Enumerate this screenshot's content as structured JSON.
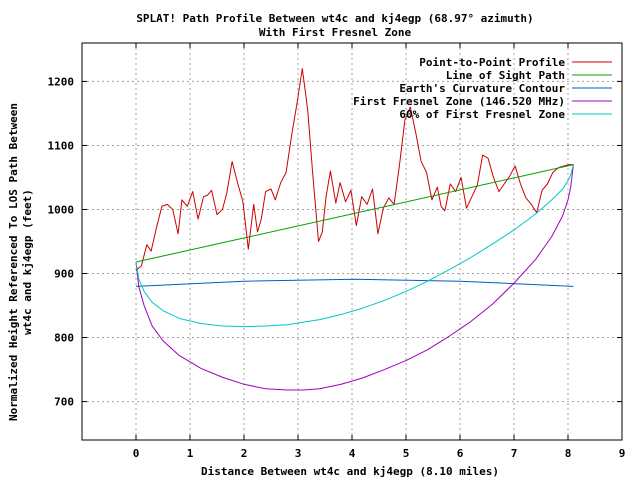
{
  "chart_data": {
    "type": "line",
    "title": "SPLAT! Path Profile Between wt4c and kj4egp (68.97° azimuth)",
    "subtitle": "With First Fresnel Zone",
    "xlabel": "Distance Between wt4c and kj4egp (8.10 miles)",
    "ylabel_line1": "Normalized Height Referenced To LOS Path Between",
    "ylabel_line2": "wt4c and kj4egp (feet)",
    "xlim": [
      -1,
      9
    ],
    "ylim": [
      640,
      1260
    ],
    "xticks": [
      "0",
      "1",
      "2",
      "3",
      "4",
      "5",
      "6",
      "7",
      "8",
      "9"
    ],
    "yticks": [
      "700",
      "800",
      "900",
      "1000",
      "1100",
      "1200"
    ],
    "grid": true,
    "legend_position": "top-right",
    "series": [
      {
        "name": "Point-to-Point Profile",
        "color": "#cc0000",
        "x": [
          0.0,
          0.1,
          0.2,
          0.28,
          0.38,
          0.48,
          0.58,
          0.68,
          0.78,
          0.85,
          0.95,
          1.05,
          1.15,
          1.25,
          1.32,
          1.4,
          1.5,
          1.6,
          1.68,
          1.78,
          1.88,
          1.98,
          2.08,
          2.18,
          2.25,
          2.32,
          2.4,
          2.5,
          2.58,
          2.68,
          2.78,
          2.88,
          2.98,
          3.08,
          3.18,
          3.28,
          3.38,
          3.45,
          3.52,
          3.6,
          3.7,
          3.78,
          3.88,
          3.98,
          4.08,
          4.18,
          4.28,
          4.38,
          4.48,
          4.58,
          4.68,
          4.78,
          4.88,
          4.98,
          5.08,
          5.18,
          5.28,
          5.38,
          5.48,
          5.58,
          5.65,
          5.72,
          5.82,
          5.92,
          6.02,
          6.12,
          6.22,
          6.32,
          6.42,
          6.52,
          6.62,
          6.72,
          6.82,
          6.92,
          7.02,
          7.12,
          7.22,
          7.32,
          7.42,
          7.52,
          7.62,
          7.72,
          7.82,
          7.92,
          8.02,
          8.1
        ],
        "y": [
          905,
          912,
          945,
          935,
          972,
          1005,
          1008,
          1000,
          962,
          1015,
          1005,
          1028,
          985,
          1020,
          1022,
          1030,
          992,
          1000,
          1025,
          1075,
          1042,
          1012,
          938,
          1008,
          965,
          985,
          1028,
          1032,
          1015,
          1042,
          1058,
          1115,
          1165,
          1220,
          1155,
          1048,
          950,
          965,
          1020,
          1060,
          1010,
          1042,
          1012,
          1030,
          975,
          1020,
          1008,
          1032,
          962,
          1002,
          1018,
          1008,
          1070,
          1140,
          1160,
          1120,
          1075,
          1058,
          1015,
          1035,
          1005,
          998,
          1040,
          1028,
          1050,
          1002,
          1020,
          1038,
          1085,
          1080,
          1050,
          1028,
          1040,
          1052,
          1068,
          1040,
          1018,
          1008,
          995,
          1030,
          1040,
          1058,
          1065,
          1068,
          1070,
          1070
        ]
      },
      {
        "name": "Line of Sight Path",
        "color": "#00a000",
        "x": [
          0.0,
          8.1
        ],
        "y": [
          918,
          1070
        ]
      },
      {
        "name": "Earth's Curvature Contour",
        "color": "#0060c0",
        "x": [
          0.0,
          2.0,
          4.05,
          6.0,
          8.1
        ],
        "y": [
          880,
          888,
          891,
          888,
          880
        ]
      },
      {
        "name": "First Fresnel Zone (146.520 MHz)",
        "color": "#a000c0",
        "x": [
          0.0,
          0.05,
          0.15,
          0.3,
          0.5,
          0.8,
          1.2,
          1.6,
          2.0,
          2.4,
          2.8,
          3.1,
          3.4,
          3.8,
          4.2,
          4.6,
          5.0,
          5.4,
          5.8,
          6.2,
          6.6,
          7.0,
          7.4,
          7.7,
          7.9,
          8.0,
          8.05,
          8.1
        ],
        "y": [
          918,
          880,
          850,
          818,
          795,
          772,
          752,
          738,
          727,
          720,
          718,
          718,
          720,
          727,
          737,
          750,
          764,
          781,
          802,
          825,
          852,
          885,
          922,
          958,
          990,
          1015,
          1035,
          1070
        ]
      },
      {
        "name": "60% of First Fresnel Zone",
        "color": "#00c8c8",
        "x": [
          0.0,
          0.05,
          0.15,
          0.3,
          0.5,
          0.8,
          1.2,
          1.6,
          2.0,
          2.4,
          2.8,
          3.1,
          3.4,
          3.8,
          4.2,
          4.6,
          5.0,
          5.4,
          5.8,
          6.2,
          6.6,
          7.0,
          7.4,
          7.7,
          7.9,
          8.0,
          8.05,
          8.1
        ],
        "y": [
          918,
          892,
          872,
          855,
          842,
          830,
          822,
          818,
          817,
          818,
          820,
          824,
          828,
          836,
          846,
          858,
          872,
          888,
          906,
          925,
          946,
          968,
          993,
          1015,
          1032,
          1045,
          1054,
          1070
        ]
      }
    ]
  }
}
